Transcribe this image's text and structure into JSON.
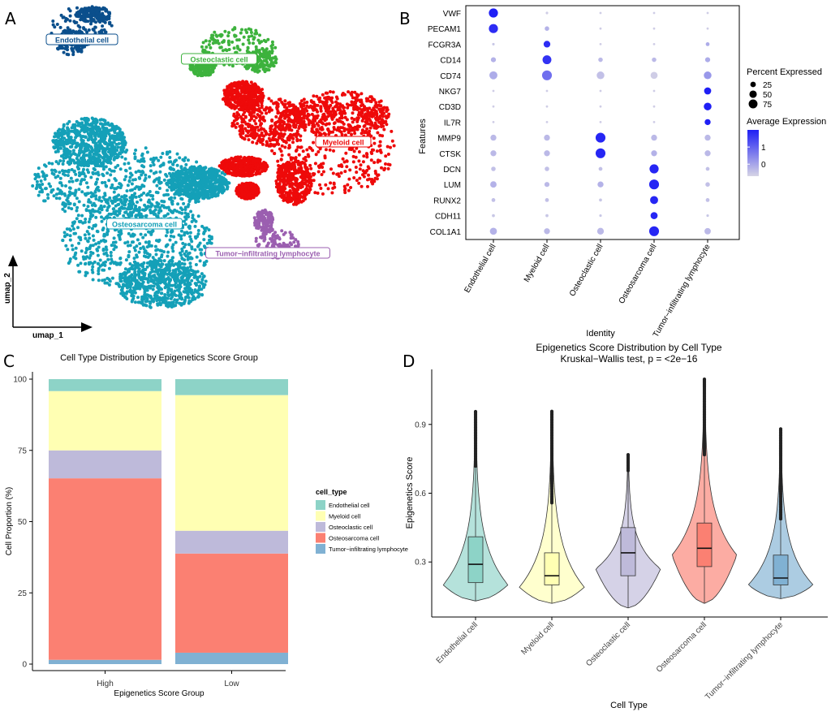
{
  "panel_labels": [
    "A",
    "B",
    "C",
    "D"
  ],
  "colors": {
    "endothelial": "#0b4f8c",
    "osteoclastic": "#3db23d",
    "myeloid": "#ee0a0a",
    "osteosarcoma": "#14a0b8",
    "til": "#9b5fb0",
    "bar_endothelial": "#8dd3c7",
    "bar_myeloid": "#ffffb3",
    "bar_osteoclastic": "#bebada",
    "bar_osteosarcoma": "#fb8072",
    "bar_til": "#80b1d3",
    "dot_low": "#d6d4e5",
    "dot_high": "#1f1ff5"
  },
  "chart_data": [
    {
      "type": "scatter",
      "panel": "A",
      "subtype": "umap",
      "xlabel": "umap_1",
      "ylabel": "umap_2",
      "clusters": [
        {
          "label": "Endothelial cell",
          "color": "#0b4f8c"
        },
        {
          "label": "Osteoclastic cell",
          "color": "#3db23d"
        },
        {
          "label": "Myeloid cell",
          "color": "#ee0a0a"
        },
        {
          "label": "Osteosarcoma cell",
          "color": "#14a0b8"
        },
        {
          "label": "Tumor−infiltrating lymphocyte",
          "color": "#9b5fb0"
        }
      ]
    },
    {
      "type": "scatter",
      "panel": "B",
      "subtype": "dotplot",
      "xlabel": "Identity",
      "ylabel": "Features",
      "identities": [
        "Endothelial cell",
        "Myeloid cell",
        "Osteoclastic cell",
        "Osteosarcoma cell",
        "Tumor−infiltrating lymphocyte"
      ],
      "features": [
        "VWF",
        "PECAM1",
        "FCGR3A",
        "CD14",
        "CD74",
        "NKG7",
        "CD3D",
        "IL7R",
        "MMP9",
        "CTSK",
        "DCN",
        "LUM",
        "RUNX2",
        "CDH11",
        "COL1A1"
      ],
      "percent": [
        [
          80,
          3,
          2,
          2,
          2
        ],
        [
          80,
          15,
          2,
          2,
          2
        ],
        [
          3,
          40,
          2,
          2,
          10
        ],
        [
          20,
          75,
          15,
          15,
          20
        ],
        [
          60,
          95,
          55,
          45,
          55
        ],
        [
          2,
          2,
          2,
          2,
          45
        ],
        [
          2,
          2,
          2,
          2,
          55
        ],
        [
          2,
          2,
          2,
          2,
          30
        ],
        [
          30,
          30,
          95,
          30,
          30
        ],
        [
          30,
          30,
          95,
          30,
          30
        ],
        [
          15,
          15,
          10,
          80,
          10
        ],
        [
          35,
          20,
          30,
          95,
          15
        ],
        [
          10,
          10,
          5,
          60,
          10
        ],
        [
          5,
          5,
          3,
          45,
          3
        ],
        [
          45,
          30,
          40,
          95,
          35
        ]
      ],
      "avg_expression": [
        [
          2.0,
          -0.6,
          -0.6,
          -0.6,
          -0.6
        ],
        [
          1.8,
          -0.2,
          -0.6,
          -0.6,
          -0.6
        ],
        [
          -0.5,
          1.8,
          -0.6,
          -0.6,
          -0.1
        ],
        [
          -0.2,
          1.7,
          -0.3,
          -0.3,
          -0.1
        ],
        [
          -0.1,
          0.8,
          -0.4,
          -0.6,
          0.2
        ],
        [
          -0.6,
          -0.6,
          -0.6,
          -0.6,
          2.0
        ],
        [
          -0.6,
          -0.6,
          -0.6,
          -0.6,
          2.0
        ],
        [
          -0.6,
          -0.6,
          -0.6,
          -0.6,
          2.0
        ],
        [
          -0.3,
          -0.3,
          1.9,
          -0.3,
          -0.3
        ],
        [
          -0.3,
          -0.3,
          1.9,
          -0.2,
          -0.3
        ],
        [
          -0.4,
          -0.4,
          -0.4,
          1.9,
          -0.4
        ],
        [
          -0.2,
          -0.3,
          -0.2,
          1.9,
          -0.4
        ],
        [
          -0.4,
          -0.4,
          -0.5,
          1.9,
          -0.4
        ],
        [
          -0.5,
          -0.5,
          -0.5,
          1.9,
          -0.5
        ],
        [
          -0.2,
          -0.3,
          -0.3,
          1.9,
          -0.3
        ]
      ],
      "legend": {
        "size_title": "Percent Expressed",
        "size_values": [
          25,
          50,
          75
        ],
        "size_labels": [
          "25",
          "50",
          "75"
        ],
        "color_title": "Average Expression",
        "color_ticks": [
          "1",
          "0"
        ],
        "color_range": [
          -0.7,
          2
        ]
      }
    },
    {
      "type": "bar",
      "panel": "C",
      "subtype": "stacked-percent",
      "title": "Cell Type Distribution by Epigenetics Score Group",
      "xlabel": "Epigenetics Score Group",
      "ylabel": "Cell Proportion (%)",
      "ylim": [
        0,
        100
      ],
      "ticks": [
        0,
        25,
        50,
        75,
        100
      ],
      "tick_labels": [
        "0",
        "25",
        "50",
        "75",
        "100"
      ],
      "categories": [
        "High",
        "Low"
      ],
      "series": [
        {
          "name": "Tumor−infiltrating lymphocyte",
          "values": [
            1.5,
            4
          ],
          "color": "#80b1d3"
        },
        {
          "name": "Osteosarcoma cell",
          "values": [
            63.7,
            34.8
          ],
          "color": "#fb8072"
        },
        {
          "name": "Osteoclastic cell",
          "values": [
            9.8,
            8
          ],
          "color": "#bebada"
        },
        {
          "name": "Myeloid cell",
          "values": [
            20.8,
            47.6
          ],
          "color": "#ffffb3"
        },
        {
          "name": "Endothelial cell",
          "values": [
            4.2,
            5.6
          ],
          "color": "#8dd3c7"
        }
      ],
      "legend_title": "cell_type",
      "legend_order": [
        "Endothelial cell",
        "Myeloid cell",
        "Osteoclastic cell",
        "Osteosarcoma cell",
        "Tumor−infiltrating lymphocyte"
      ],
      "legend_position": "right"
    },
    {
      "type": "violin",
      "panel": "D",
      "title": "Epigenetics Score Distribution by Cell Type",
      "subtitle": "Kruskal−Wallis test, p = <2e−16",
      "xlabel": "Cell Type",
      "ylabel": "Epigenetics Score",
      "ylim": [
        0.06,
        1.14
      ],
      "ticks": [
        0.3,
        0.6,
        0.9
      ],
      "tick_labels": [
        "0.3",
        "0.6",
        "0.9"
      ],
      "categories": [
        "Endothelial cell",
        "Myeloid cell",
        "Osteoclastic cell",
        "Osteosarcoma cell",
        "Tumor−infiltrating lymphocyte"
      ],
      "colors": [
        "#8dd3c7",
        "#ffffb3",
        "#bebada",
        "#fb8072",
        "#80b1d3"
      ],
      "stats": [
        {
          "min": 0.13,
          "q1": 0.21,
          "median": 0.29,
          "q3": 0.41,
          "max": 0.71,
          "top": 0.96,
          "mode": 0.2
        },
        {
          "min": 0.12,
          "q1": 0.2,
          "median": 0.24,
          "q3": 0.34,
          "max": 0.55,
          "top": 0.96,
          "mode": 0.19
        },
        {
          "min": 0.1,
          "q1": 0.24,
          "median": 0.34,
          "q3": 0.45,
          "max": 0.69,
          "top": 0.77,
          "mode": 0.27
        },
        {
          "min": 0.12,
          "q1": 0.28,
          "median": 0.36,
          "q3": 0.47,
          "max": 0.76,
          "top": 1.1,
          "mode": 0.33
        },
        {
          "min": 0.14,
          "q1": 0.2,
          "median": 0.23,
          "q3": 0.33,
          "max": 0.48,
          "top": 0.88,
          "mode": 0.2
        }
      ]
    }
  ]
}
